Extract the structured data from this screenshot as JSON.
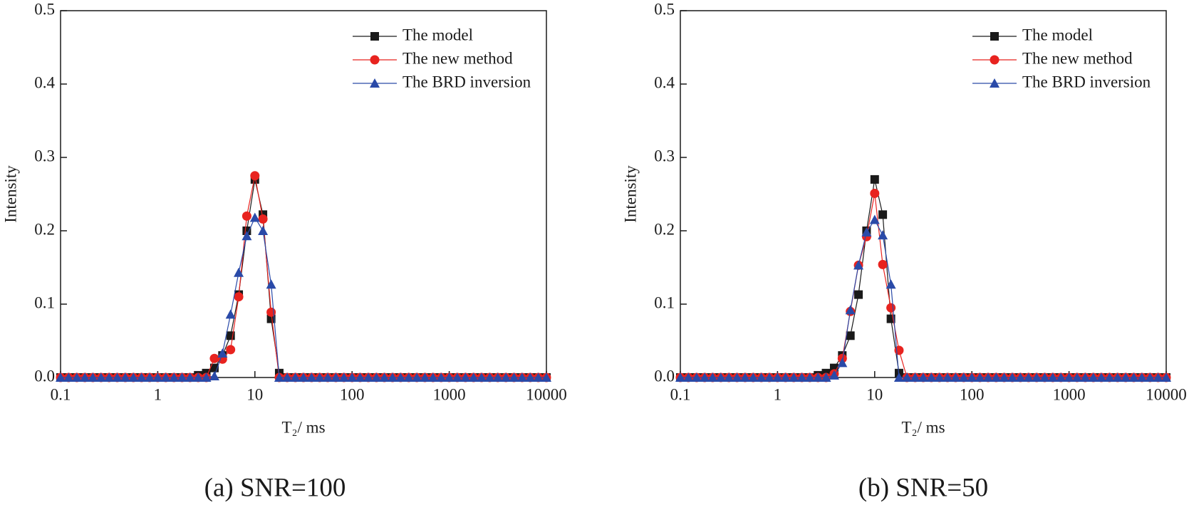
{
  "chart_data": [
    {
      "type": "line",
      "caption": "(a) SNR=100",
      "xlabel": "T₂/ ms",
      "ylabel": "Intensity",
      "xscale": "log",
      "legend": "upper right",
      "xlim": [
        0.1,
        10000
      ],
      "xticks": [
        0.1,
        1,
        10,
        100,
        1000,
        10000
      ],
      "ylim": [
        0,
        0.5
      ],
      "yticks": [
        {
          "value": 0,
          "label": "0.0"
        },
        0.1,
        0.2,
        0.3,
        0.4,
        0.5
      ],
      "x": [
        0.1,
        0.121,
        0.147,
        0.178,
        0.215,
        0.261,
        0.316,
        0.383,
        0.464,
        0.562,
        0.681,
        0.825,
        1,
        1.21,
        1.47,
        1.78,
        2.15,
        2.61,
        3.16,
        3.83,
        4.64,
        5.62,
        6.81,
        8.25,
        10,
        12.1,
        14.7,
        17.8,
        21.5,
        26.1,
        31.6,
        38.3,
        46.4,
        56.2,
        68.1,
        82.5,
        100,
        121,
        147,
        178,
        215,
        261,
        316,
        383,
        464,
        562,
        681,
        825,
        1000,
        1210,
        1470,
        1780,
        2150,
        2610,
        3160,
        3830,
        4640,
        5620,
        6810,
        8250,
        10000
      ],
      "series": [
        {
          "name": "The model",
          "color": "#1a1a1a",
          "marker": "square",
          "values": [
            0,
            0,
            0,
            0,
            0,
            0,
            0,
            0,
            0,
            0,
            0,
            0,
            0,
            0,
            0,
            0,
            0,
            0.003,
            0.006,
            0.013,
            0.03,
            0.057,
            0.113,
            0.2,
            0.27,
            0.222,
            0.08,
            0.006,
            0,
            0,
            0,
            0,
            0,
            0,
            0,
            0,
            0,
            0,
            0,
            0,
            0,
            0,
            0,
            0,
            0,
            0,
            0,
            0,
            0,
            0,
            0,
            0,
            0,
            0,
            0,
            0,
            0,
            0,
            0,
            0,
            0
          ]
        },
        {
          "name": "The new method",
          "color": "#e8231f",
          "marker": "circle",
          "values": [
            0,
            0,
            0,
            0,
            0,
            0,
            0,
            0,
            0,
            0,
            0,
            0,
            0,
            0,
            0,
            0,
            0,
            0,
            0,
            0.026,
            0.025,
            0.038,
            0.11,
            0.22,
            0.275,
            0.216,
            0.089,
            0,
            0,
            0,
            0,
            0,
            0,
            0,
            0,
            0,
            0,
            0,
            0,
            0,
            0,
            0,
            0,
            0,
            0,
            0,
            0,
            0,
            0,
            0,
            0,
            0,
            0,
            0,
            0,
            0,
            0,
            0,
            0,
            0,
            0
          ]
        },
        {
          "name": "The BRD inversion",
          "color": "#2a4aa8",
          "marker": "triangle",
          "values": [
            0,
            0,
            0,
            0,
            0,
            0,
            0,
            0,
            0,
            0,
            0,
            0,
            0,
            0,
            0,
            0,
            0,
            0,
            0,
            0.002,
            0.033,
            0.086,
            0.143,
            0.193,
            0.218,
            0.2,
            0.127,
            0,
            0,
            0,
            0,
            0,
            0,
            0,
            0,
            0,
            0,
            0,
            0,
            0,
            0,
            0,
            0,
            0,
            0,
            0,
            0,
            0,
            0,
            0,
            0,
            0,
            0,
            0,
            0,
            0,
            0,
            0,
            0,
            0,
            0
          ]
        }
      ]
    },
    {
      "type": "line",
      "caption": "(b) SNR=50",
      "xlabel": "T₂/ ms",
      "ylabel": "Intensity",
      "xscale": "log",
      "legend": "upper right",
      "xlim": [
        0.1,
        10000
      ],
      "xticks": [
        0.1,
        1,
        10,
        100,
        1000,
        10000
      ],
      "ylim": [
        0,
        0.5
      ],
      "yticks": [
        {
          "value": 0,
          "label": "0.0"
        },
        0.1,
        0.2,
        0.3,
        0.4,
        0.5
      ],
      "x": [
        0.1,
        0.121,
        0.147,
        0.178,
        0.215,
        0.261,
        0.316,
        0.383,
        0.464,
        0.562,
        0.681,
        0.825,
        1,
        1.21,
        1.47,
        1.78,
        2.15,
        2.61,
        3.16,
        3.83,
        4.64,
        5.62,
        6.81,
        8.25,
        10,
        12.1,
        14.7,
        17.8,
        21.5,
        26.1,
        31.6,
        38.3,
        46.4,
        56.2,
        68.1,
        82.5,
        100,
        121,
        147,
        178,
        215,
        261,
        316,
        383,
        464,
        562,
        681,
        825,
        1000,
        1210,
        1470,
        1780,
        2150,
        2610,
        3160,
        3830,
        4640,
        5620,
        6810,
        8250,
        10000
      ],
      "series": [
        {
          "name": "The model",
          "color": "#1a1a1a",
          "marker": "square",
          "values": [
            0,
            0,
            0,
            0,
            0,
            0,
            0,
            0,
            0,
            0,
            0,
            0,
            0,
            0,
            0,
            0,
            0,
            0.003,
            0.006,
            0.013,
            0.03,
            0.057,
            0.113,
            0.2,
            0.27,
            0.222,
            0.08,
            0.006,
            0,
            0,
            0,
            0,
            0,
            0,
            0,
            0,
            0,
            0,
            0,
            0,
            0,
            0,
            0,
            0,
            0,
            0,
            0,
            0,
            0,
            0,
            0,
            0,
            0,
            0,
            0,
            0,
            0,
            0,
            0,
            0,
            0
          ]
        },
        {
          "name": "The new method",
          "color": "#e8231f",
          "marker": "circle",
          "values": [
            0,
            0,
            0,
            0,
            0,
            0,
            0,
            0,
            0,
            0,
            0,
            0,
            0,
            0,
            0,
            0,
            0,
            0,
            0,
            0.005,
            0.026,
            0.09,
            0.153,
            0.192,
            0.251,
            0.154,
            0.095,
            0.037,
            0,
            0,
            0,
            0,
            0,
            0,
            0,
            0,
            0,
            0,
            0,
            0,
            0,
            0,
            0,
            0,
            0,
            0,
            0,
            0,
            0,
            0,
            0,
            0,
            0,
            0,
            0,
            0,
            0,
            0,
            0,
            0,
            0
          ]
        },
        {
          "name": "The BRD inversion",
          "color": "#2a4aa8",
          "marker": "triangle",
          "values": [
            0,
            0,
            0,
            0,
            0,
            0,
            0,
            0,
            0,
            0,
            0,
            0,
            0,
            0,
            0,
            0,
            0,
            0,
            0,
            0.003,
            0.02,
            0.092,
            0.153,
            0.198,
            0.215,
            0.194,
            0.127,
            0,
            0,
            0,
            0,
            0,
            0,
            0,
            0,
            0,
            0,
            0,
            0,
            0,
            0,
            0,
            0,
            0,
            0,
            0,
            0,
            0,
            0,
            0,
            0,
            0,
            0,
            0,
            0,
            0,
            0,
            0,
            0,
            0,
            0
          ]
        }
      ]
    }
  ]
}
